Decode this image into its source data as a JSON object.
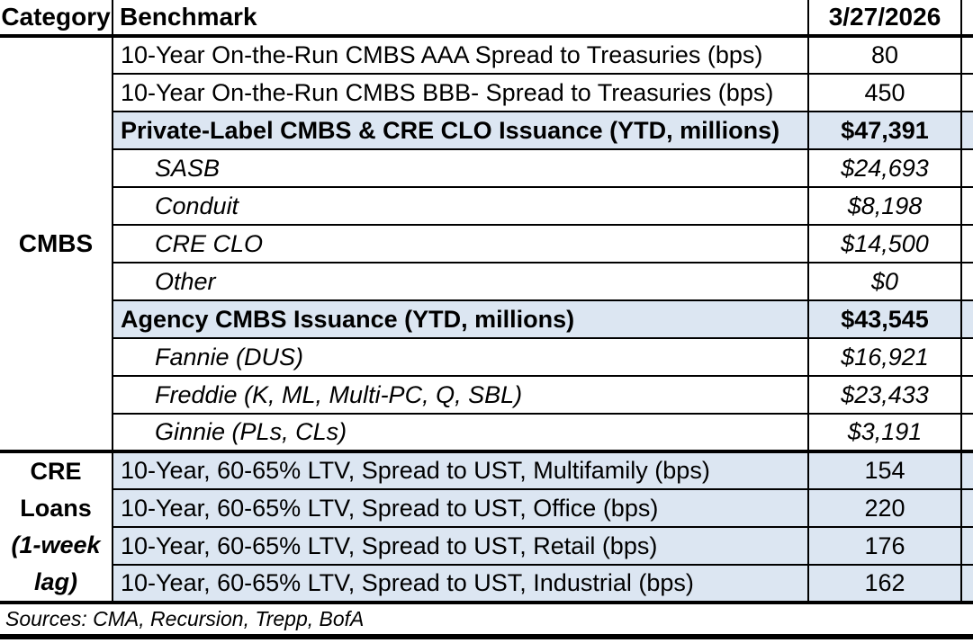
{
  "table": {
    "headers": {
      "category": "Category",
      "benchmark": "Benchmark",
      "date": "3/27/2026"
    },
    "sections": [
      {
        "category": "CMBS",
        "rows": [
          {
            "benchmark": "10-Year On-the-Run CMBS AAA Spread to Treasuries (bps)",
            "value": "80"
          },
          {
            "benchmark": "10-Year On-the-Run CMBS BBB- Spread to Treasuries (bps)",
            "value": "450"
          },
          {
            "benchmark": "Private-Label CMBS & CRE CLO Issuance (YTD, millions)",
            "value": "$47,391"
          },
          {
            "benchmark": "SASB",
            "value": "$24,693"
          },
          {
            "benchmark": "Conduit",
            "value": "$8,198"
          },
          {
            "benchmark": "CRE CLO",
            "value": "$14,500"
          },
          {
            "benchmark": "Other",
            "value": "$0"
          },
          {
            "benchmark": "Agency CMBS Issuance (YTD, millions)",
            "value": "$43,545"
          },
          {
            "benchmark": "Fannie (DUS)",
            "value": "$16,921"
          },
          {
            "benchmark": "Freddie (K, ML, Multi-PC, Q, SBL)",
            "value": "$23,433"
          },
          {
            "benchmark": "Ginnie (PLs, CLs)",
            "value": "$3,191"
          }
        ]
      },
      {
        "category_lines": [
          "CRE",
          "Loans",
          "(1-week",
          "lag)"
        ],
        "rows": [
          {
            "benchmark": "10-Year, 60-65% LTV, Spread to UST, Multifamily (bps)",
            "value": "154"
          },
          {
            "benchmark": "10-Year, 60-65% LTV, Spread to UST, Office (bps)",
            "value": "220"
          },
          {
            "benchmark": "10-Year, 60-65% LTV, Spread to UST, Retail (bps)",
            "value": "176"
          },
          {
            "benchmark": "10-Year, 60-65% LTV, Spread to UST, Industrial (bps)",
            "value": "162"
          }
        ]
      }
    ]
  },
  "footer": {
    "sources": "Sources: CMA, Recursion, Trepp, BofA"
  },
  "colors": {
    "highlight_row": "#dce6f2",
    "border": "#000000",
    "text": "#000000"
  }
}
